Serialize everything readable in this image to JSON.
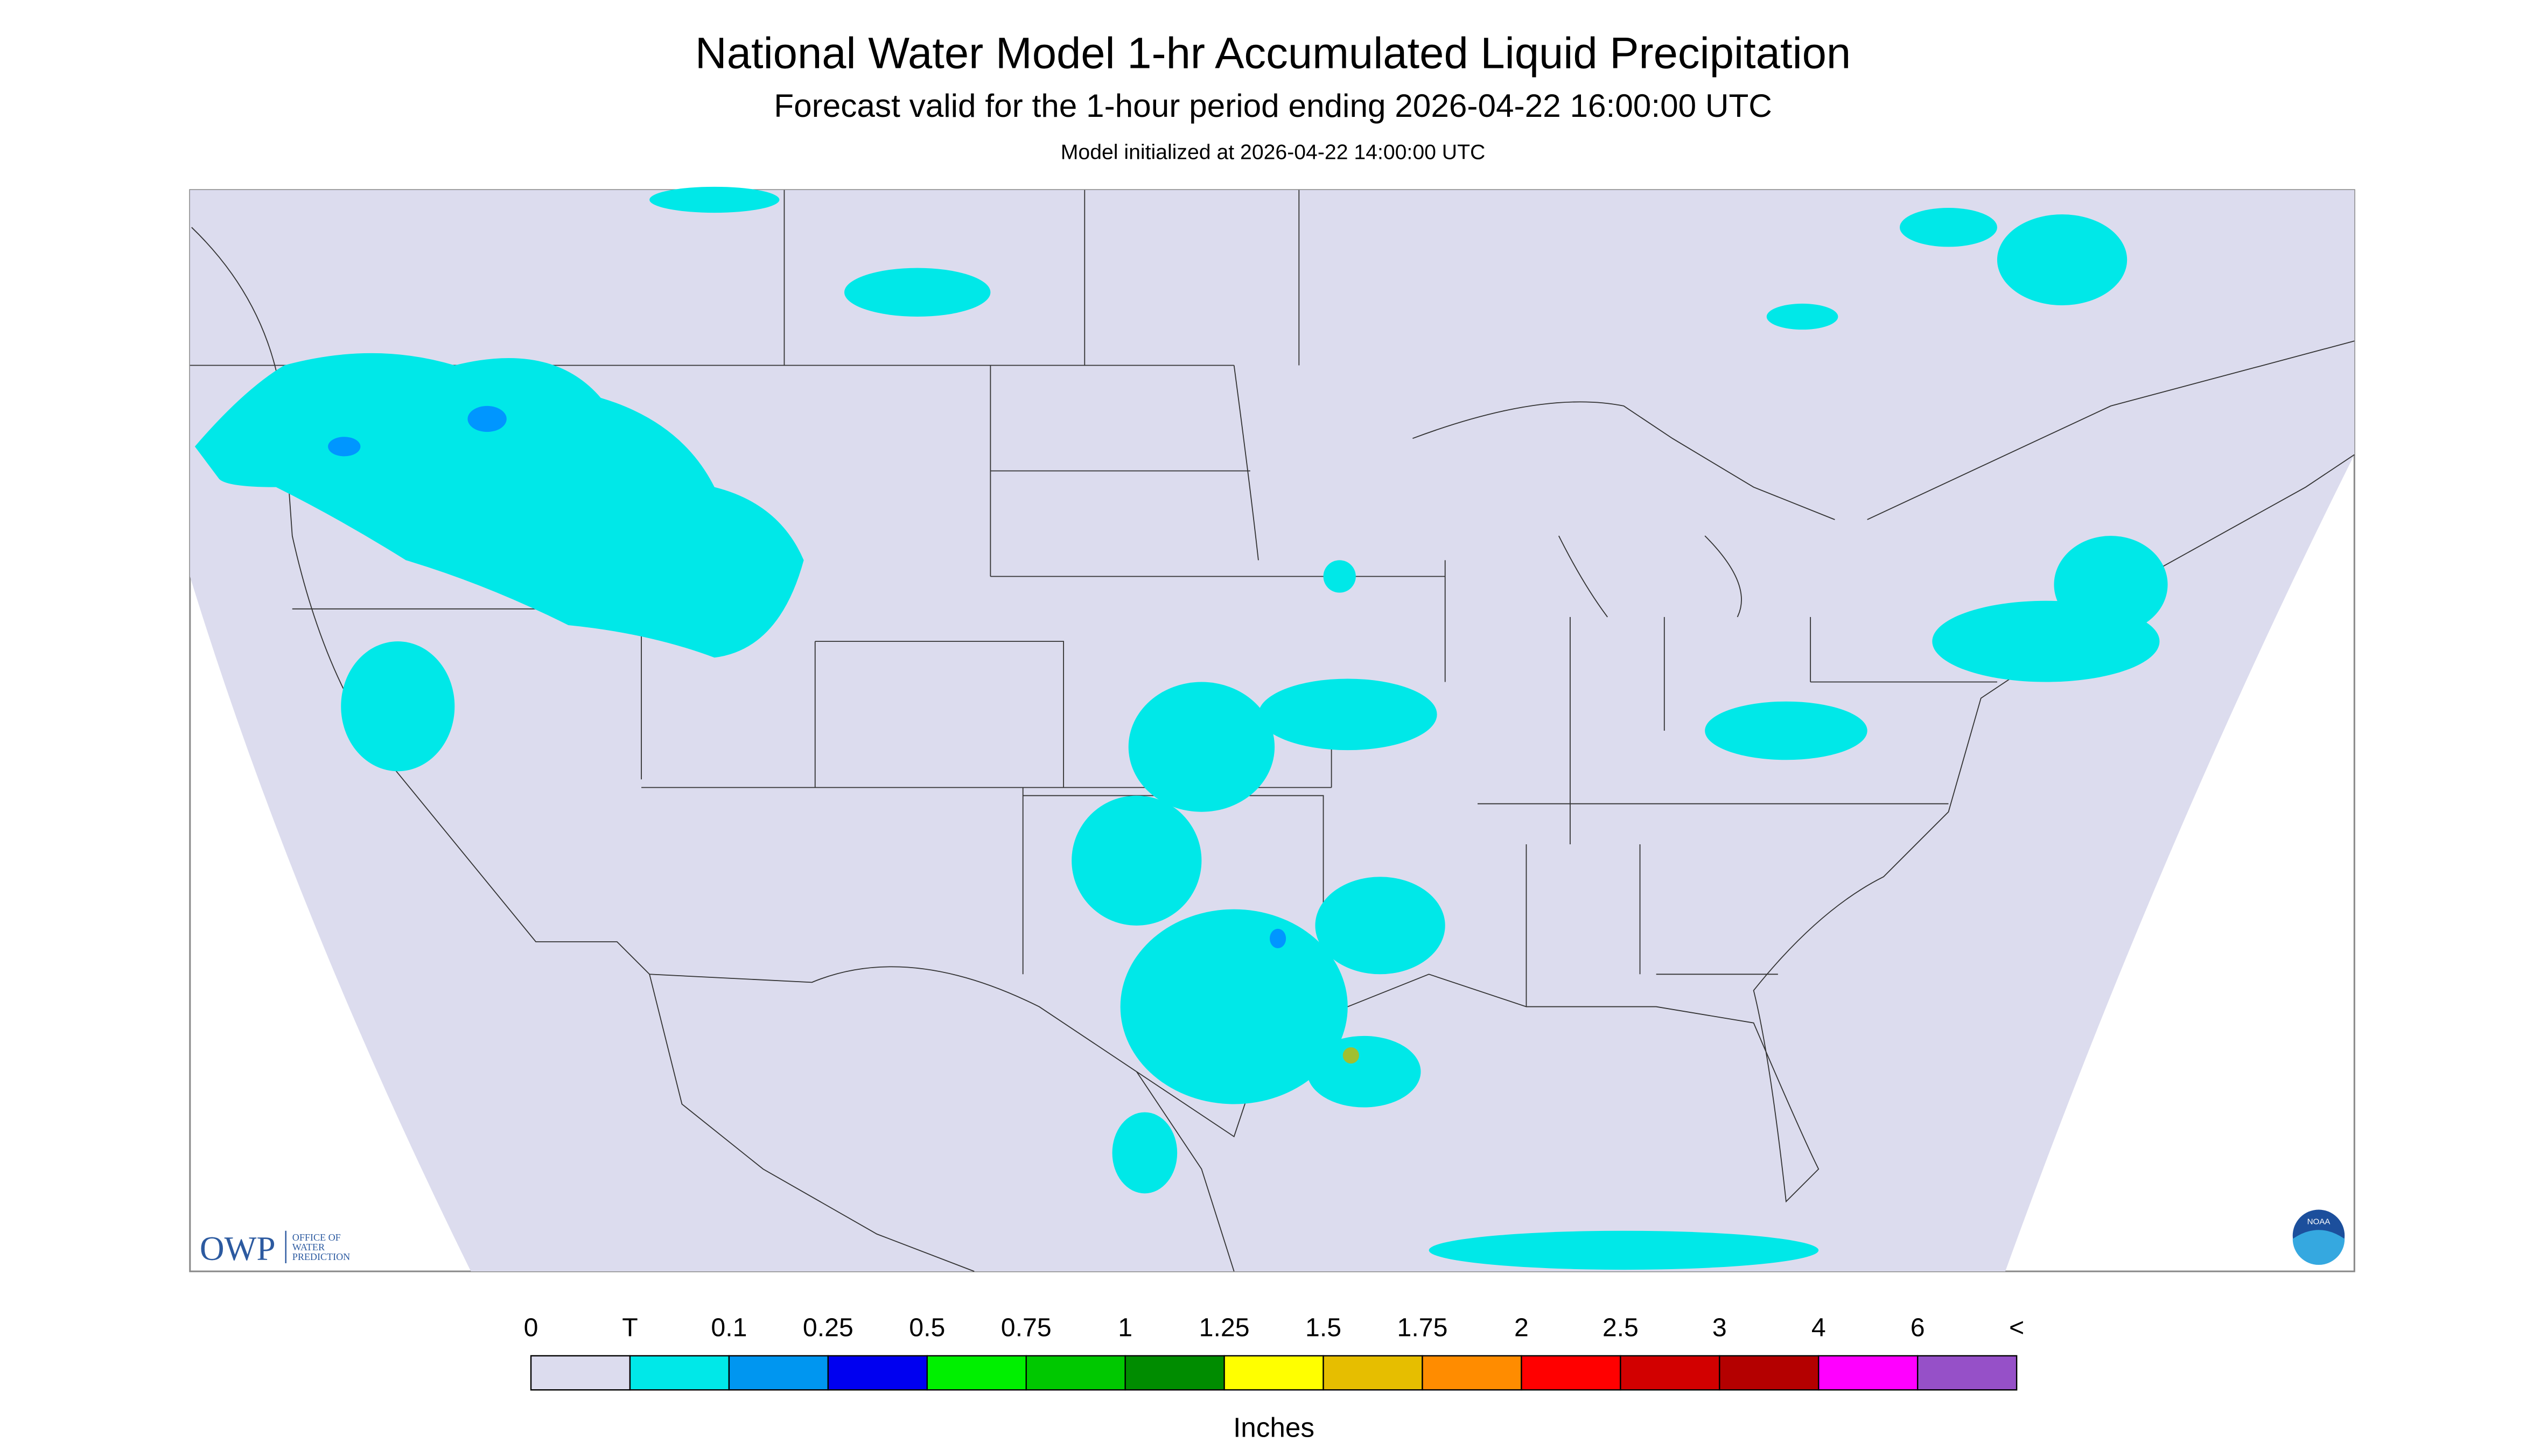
{
  "header": {
    "title": "National Water Model 1-hr Accumulated Liquid Precipitation",
    "subtitle": "Forecast valid for the 1-hour period ending 2026-04-22 16:00:00 UTC",
    "note": "Model initialized at 2026-04-22 14:00:00 UTC"
  },
  "logos": {
    "owp": "OWP",
    "owp_name": [
      "OFFICE OF",
      "WATER",
      "PREDICTION"
    ],
    "noaa": "NOAA"
  },
  "legend": {
    "labels": [
      "0",
      "T",
      "0.1",
      "0.25",
      "0.5",
      "0.75",
      "1",
      "1.25",
      "1.5",
      "1.75",
      "2",
      "2.5",
      "3",
      "4",
      "6",
      "<"
    ],
    "colors": [
      "#dcdcee",
      "#00e8e8",
      "#0096f0",
      "#0000f0",
      "#00f000",
      "#00c800",
      "#008c00",
      "#ffff00",
      "#e6be00",
      "#ff8c00",
      "#ff0000",
      "#d20000",
      "#b40000",
      "#ff00ff",
      "#9650c8"
    ],
    "units": "Inches"
  }
}
